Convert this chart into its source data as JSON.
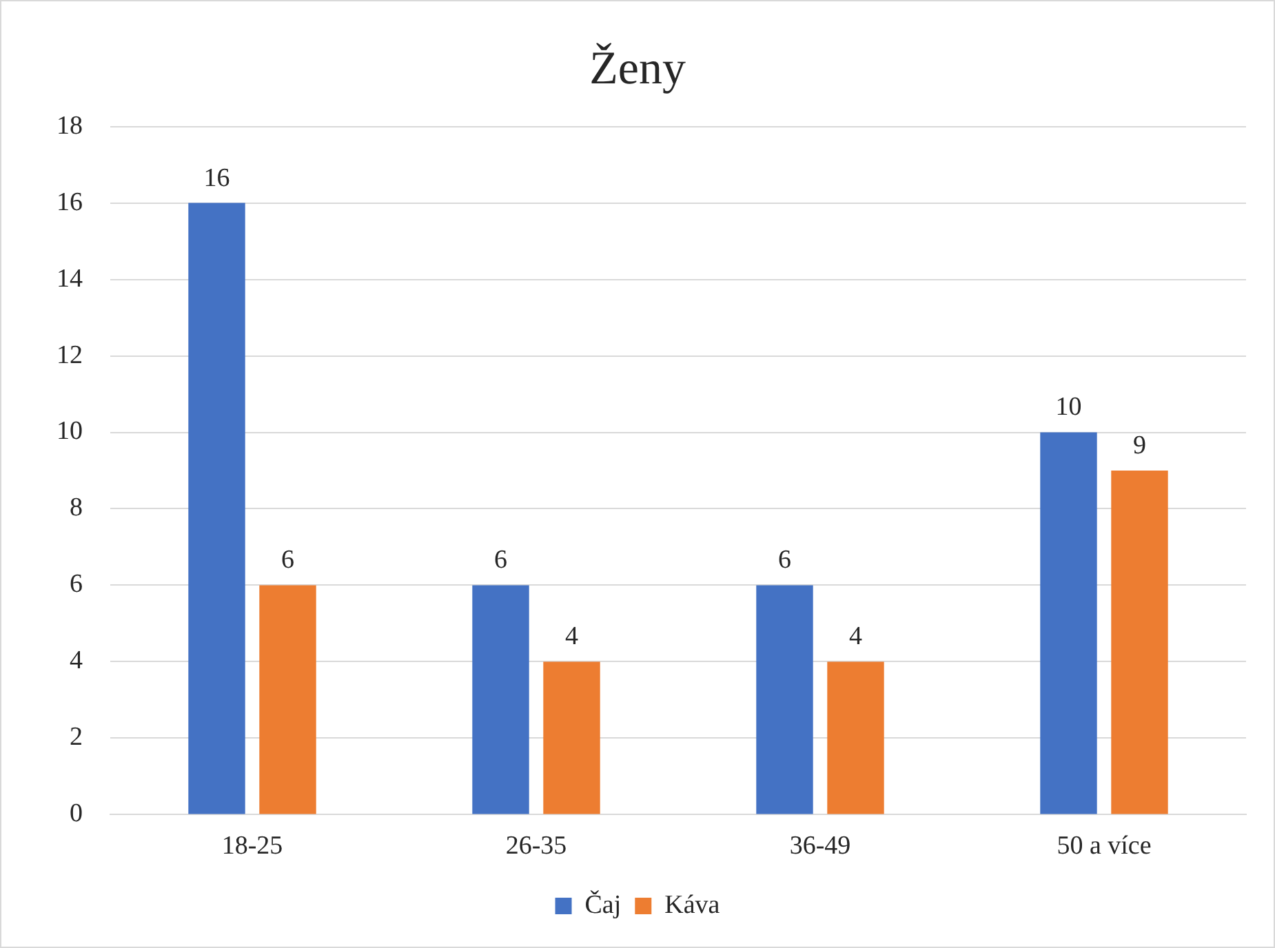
{
  "chart_data": {
    "type": "bar",
    "title": "Ženy",
    "categories": [
      "18-25",
      "26-35",
      "36-49",
      "50 a více"
    ],
    "series": [
      {
        "name": "Čaj",
        "color": "#4472c4",
        "values": [
          16,
          6,
          6,
          10
        ]
      },
      {
        "name": "Káva",
        "color": "#ed7d31",
        "values": [
          6,
          4,
          4,
          9
        ]
      }
    ],
    "ylim": [
      0,
      18
    ],
    "yticks": [
      0,
      2,
      4,
      6,
      8,
      10,
      12,
      14,
      16,
      18
    ],
    "grid": "y",
    "legend": "bottom",
    "data_labels": true
  }
}
